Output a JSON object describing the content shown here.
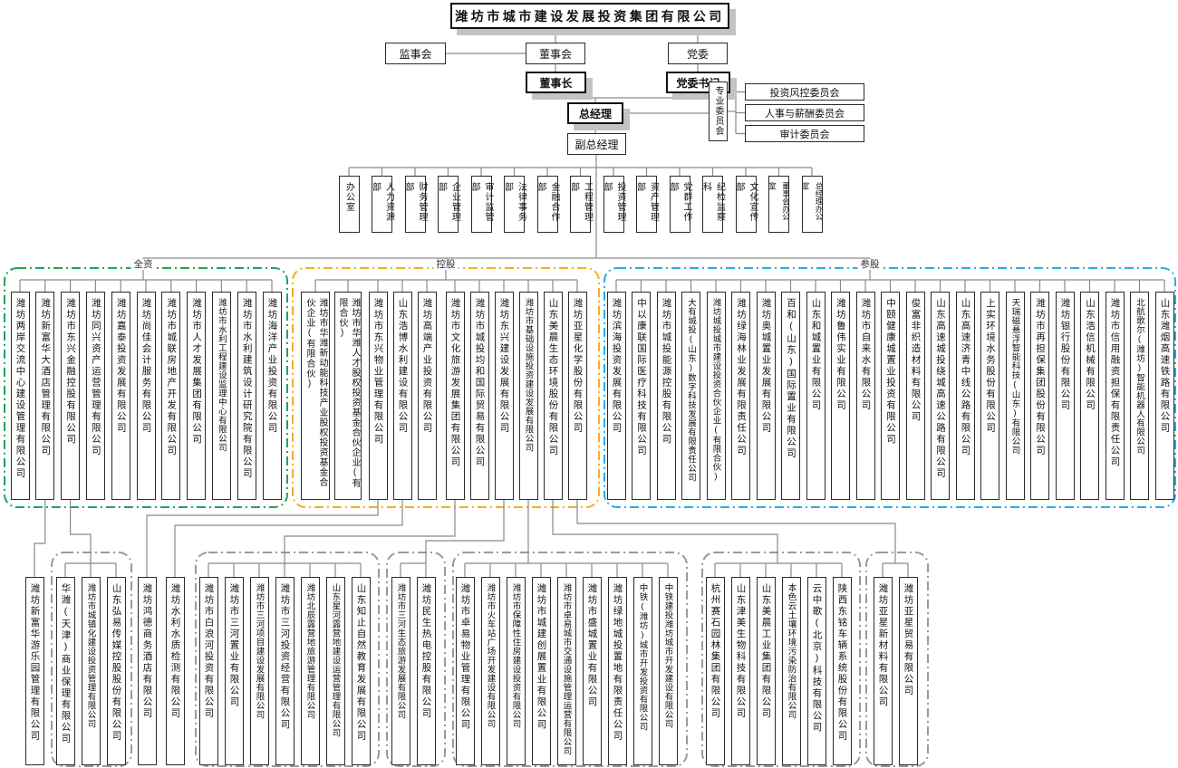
{
  "org": {
    "root": "潍坊市城市建设发展投资集团有限公司",
    "supervisory_board": "监事会",
    "board": "董事会",
    "party_committee": "党委",
    "chairman": "董事长",
    "party_secretary": "党委书记",
    "general_manager": "总经理",
    "deputy_general_manager": "副总经理",
    "special_committees_label": "专业委员会",
    "special_committees": [
      "投资风控委员会",
      "人事与薪酬委员会",
      "审计委员会"
    ]
  },
  "departments": [
    "办公室",
    "人力资源部",
    "财务管理部",
    "企业管理部",
    "审计监管部",
    "法律事务部",
    "金融合作部",
    "工程管理部",
    "投资管理部",
    "资产管理部",
    "党群工作部",
    "纪检监察科",
    "文化宣传部",
    "董事会办公室",
    "总经理办公室"
  ],
  "ownership_groups": [
    {
      "label": "全资",
      "border_color": "#21a357",
      "companies": [
        "潍坊两岸交流中心建设管理有限公司",
        "潍坊新富华大酒店管理有限公司",
        "潍坊市东兴金融控股有限公司",
        "潍坊同兴资产运营管理有限公司",
        "潍坊嘉泰投资发展有限公司",
        "潍坊尚佳会计服务有限公司",
        "潍坊市城联房地产开发有限公司",
        "潍坊市人才发展集团有限公司",
        "潍坊市水利工程建设监理中心有限公司",
        "潍坊市水利建筑设计研究院有限公司",
        "潍坊海洋产业投资有限公司"
      ]
    },
    {
      "label": "控股",
      "border_color": "#f2b01e",
      "companies": [
        "潍坊市华潍新动能科技产业股权投资基金合伙企业(有限合伙)",
        "潍坊市华潍人才股权投资基金合伙企业(有限合伙)",
        "潍坊市东兴物业管理有限公司",
        "山东浩博水利建设有限公司",
        "潍坊高端产业投资有限公司",
        "潍坊市文化旅游发展集团有限公司",
        "潍坊市城投均和国际贸易有限公司",
        "潍坊东兴建设发展有限公司",
        "潍坊市基础设施投资建设发展有限公司",
        "山东美晨生态环境股份有限公司",
        "潍坊亚星化学股份有限公司"
      ]
    },
    {
      "label": "参股",
      "border_color": "#2aabe4",
      "companies": [
        "潍坊滨海投资发展有限公司",
        "中以康联国际医疗科技有限公司",
        "潍坊市城投能源控股有限公司",
        "大有城投(山东)数字科技发展有限责任公司",
        "潍坊城投城市建设投资合伙企业(有限合伙)",
        "潍坊绿海林业发展有限责任公司",
        "潍坊奥城置业发展有限公司",
        "百和(山东)国际置业有限公司",
        "山东和城置业有限公司",
        "潍坊鲁伟实业有限公司",
        "潍坊市自来水有限公司",
        "中颐健康城置业投资有限公司",
        "俊富非织造材料有限公司",
        "山东高速城投绕城高速公路有限公司",
        "山东高速济青中线公路有限公司",
        "上实环境水务股份有限公司",
        "天瑞磁悬浮智能科技(山东)有限公司",
        "潍坊市再担保集团股份有限公司",
        "潍坊银行股份有限公司",
        "山东浩信机械有限公司",
        "潍坊市信用融资担保有限责任公司",
        "北航歌尔(潍坊)智能机器人有限公司",
        "山东潍烟高速铁路有限公司"
      ]
    }
  ],
  "subsidiary_clusters": [
    {
      "parent": "潍坊新富华大酒店管理有限公司",
      "companies": [
        "潍坊新富华游乐园管理有限公司"
      ]
    },
    {
      "parent": "潍坊市东兴金融控股有限公司",
      "companies": [
        "华潍(天津)商业保理有限公司",
        "潍坊市城镇化建设投资管理有限公司",
        "山东弘易传媒控股股份有限公司"
      ]
    },
    {
      "parent": "潍坊市东兴物业管理有限公司",
      "companies": [
        "潍坊鸿德商务酒店有限公司"
      ]
    },
    {
      "parent": "山东浩博水利建设有限公司",
      "companies": [
        "潍坊水利水质检测有限公司"
      ]
    },
    {
      "parent": "潍坊市文化旅游发展集团有限公司",
      "companies": [
        "潍坊市白浪河投资有限公司",
        "潍坊市三河置业有限公司",
        "潍坊市三河项目建设发展有限公司",
        "潍坊市三河投资经营有限公司",
        "潍坊北辰露营地旅游管理有限公司",
        "山东星河露营地建设运营管理有限公司",
        "山东知止自然教育发展有限公司"
      ]
    },
    {
      "parent": "潍坊东兴建设发展有限公司",
      "companies": [
        "潍坊市三河生态旅游发展有限公司",
        "潍坊民生热电控股有限公司"
      ]
    },
    {
      "parent": "潍坊市基础设施投资建设发展有限公司",
      "companies": [
        "潍坊市卓易物业管理有限公司",
        "潍坊市火车站广场开发建设有限公司",
        "潍坊市保障性住房建设投资有限公司",
        "潍坊市城建创展置业有限公司",
        "潍坊市卓易城市交通设施管理运营有限公司",
        "潍坊市盛城置业有限公司",
        "潍坊绿地城投置地有限责任公司",
        "中铁(潍坊)城市开发投资有限公司",
        "中铁建投潍坊城市开发建设有限公司"
      ]
    },
    {
      "parent": "山东美晨生态环境股份有限公司",
      "companies": [
        "杭州赛石园林集团有限公司",
        "山东津美生物科技有限公司",
        "山东美晨工业集团有限公司",
        "本色云土壤环境污染防治有限公司",
        "云中歌(北京)科技有限公司",
        "陕西东铭车辆系统股份有限公司"
      ]
    },
    {
      "parent": "潍坊亚星化学股份有限公司",
      "companies": [
        "潍坊亚星新材料有限公司",
        "潍坊亚星贸易有限公司"
      ]
    }
  ],
  "line_color": "#8a8a8a",
  "cluster_border_color": "#9a9a9a"
}
